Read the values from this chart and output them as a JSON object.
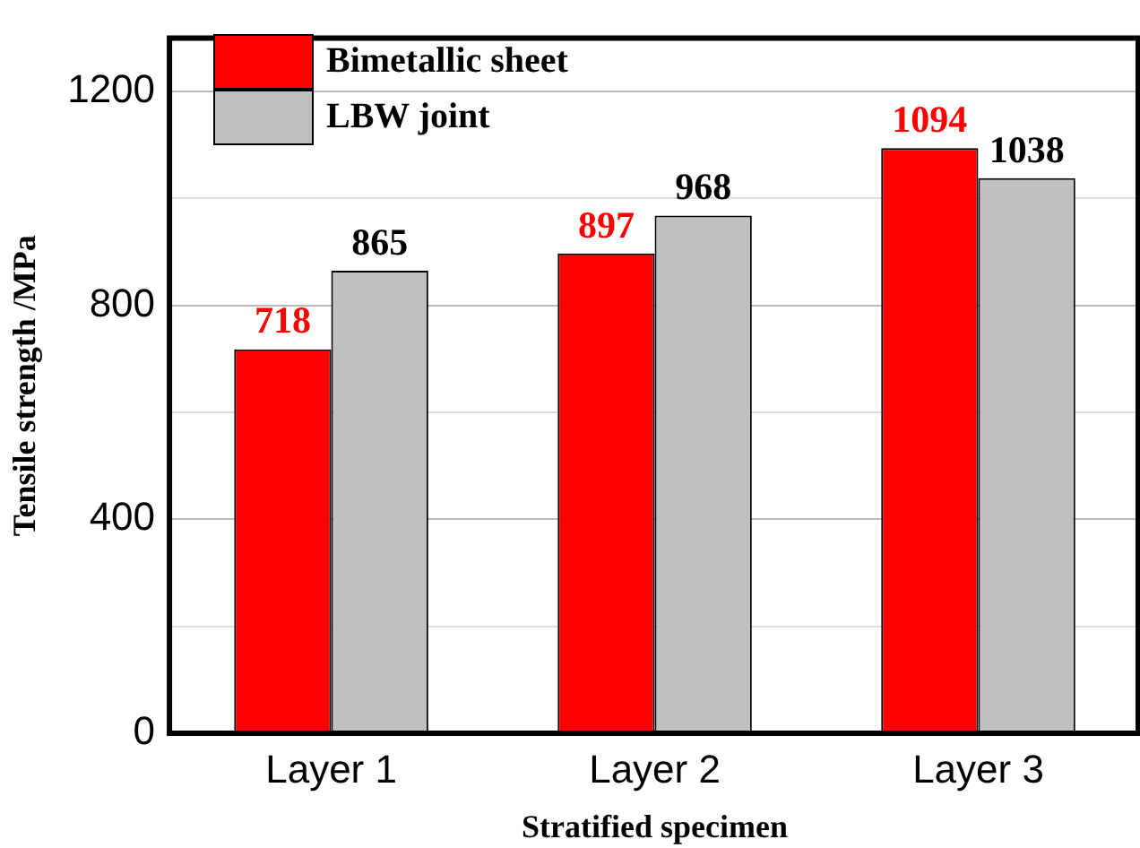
{
  "chart_data": {
    "type": "bar",
    "xlabel": "Stratified specimen",
    "ylabel": "Tensile strength /MPa",
    "categories": [
      "Layer 1",
      "Layer 2",
      "Layer 3"
    ],
    "series": [
      {
        "name": "Bimetallic sheet",
        "color": "#ff0000",
        "values": [
          718,
          897,
          1094
        ]
      },
      {
        "name": "LBW  joint",
        "color": "#c0c0c0",
        "values": [
          865,
          968,
          1038
        ]
      }
    ],
    "ylim": [
      0,
      1300
    ],
    "yticks": [
      0,
      {
        "value": 200,
        "label": null
      },
      400,
      {
        "value": 600,
        "label": null
      },
      800,
      {
        "value": 1000,
        "label": null
      },
      1200
    ],
    "grid": "y",
    "legend": "top left",
    "data_labels": true
  }
}
